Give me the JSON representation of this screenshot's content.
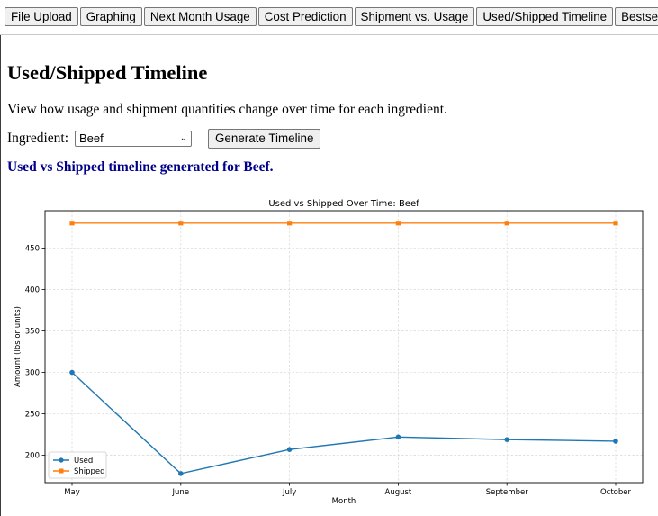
{
  "tabs": [
    {
      "label": "File Upload"
    },
    {
      "label": "Graphing"
    },
    {
      "label": "Next Month Usage"
    },
    {
      "label": "Cost Prediction"
    },
    {
      "label": "Shipment vs. Usage"
    },
    {
      "label": "Used/Shipped Timeline",
      "active": true
    },
    {
      "label": "Bestsellers"
    }
  ],
  "page": {
    "title": "Used/Shipped Timeline",
    "description": "View how usage and shipment quantities change over time for each ingredient."
  },
  "controls": {
    "ingredient_label": "Ingredient:",
    "ingredient_value": "Beef",
    "generate_label": "Generate Timeline"
  },
  "status": "Used vs Shipped timeline generated for Beef.",
  "chart_data": {
    "type": "line",
    "title": "Used vs Shipped Over Time: Beef",
    "xlabel": "Month",
    "ylabel": "Amount (lbs or units)",
    "categories": [
      "May",
      "June",
      "July",
      "August",
      "September",
      "October"
    ],
    "series": [
      {
        "name": "Used",
        "values": [
          300,
          178,
          207,
          222,
          219,
          217
        ],
        "color": "#1f77b4",
        "marker": "circle"
      },
      {
        "name": "Shipped",
        "values": [
          480,
          480,
          480,
          480,
          480,
          480
        ],
        "color": "#ff7f0e",
        "marker": "square"
      }
    ],
    "yticks": [
      200,
      250,
      300,
      350,
      400,
      450
    ],
    "ylim": [
      167,
      495
    ],
    "grid": true,
    "legend": "lower-left"
  }
}
